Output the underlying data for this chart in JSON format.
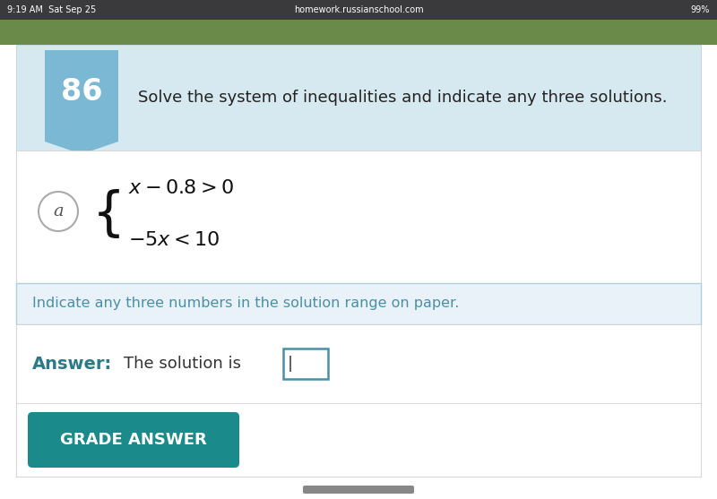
{
  "status_bar_text": "9:19 AM  Sat Sep 25",
  "status_bar_right": "99%",
  "url_text": "homework.russianschool.com",
  "problem_number": "86",
  "problem_title": "Solve the system of inequalities and indicate any three solutions.",
  "part_label": "a",
  "inequality_line1": "$x - 0.8 > 0$",
  "inequality_line2": "$-5x < 10$",
  "hint_text": "Indicate any three numbers in the solution range on paper.",
  "answer_label": "Answer:",
  "answer_text": "The solution is",
  "button_text": "GRADE ANSWER",
  "bg_color": "#ffffff",
  "status_bar_bg": "#3a3a3c",
  "status_bar_text_color": "#ffffff",
  "header_bg": "#d6e8f0",
  "problem_number_bg": "#7ab8d4",
  "problem_number_color": "#ffffff",
  "problem_title_color": "#222222",
  "part_label_color": "#555555",
  "part_circle_border": "#aaaaaa",
  "inequality_color": "#111111",
  "hint_bg": "#e8f2f8",
  "hint_border": "#b0cfe0",
  "hint_text_color": "#4a90a4",
  "answer_label_color": "#2a7a8a",
  "answer_text_color": "#333333",
  "input_border_color": "#4a90a4",
  "button_bg": "#1a8a8a",
  "button_text_color": "#ffffff",
  "nature_strip_color": "#6a8a4a",
  "bottom_bar_color": "#888888",
  "figsize": [
    8.0,
    5.57
  ],
  "dpi": 100
}
